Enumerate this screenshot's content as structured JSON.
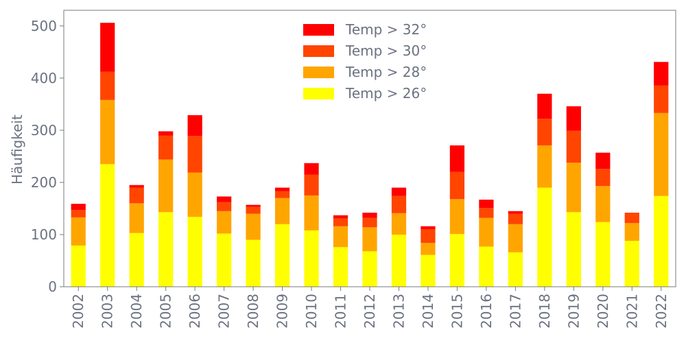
{
  "chart_data": {
    "type": "bar",
    "stacked": true,
    "categories": [
      "2002",
      "2003",
      "2004",
      "2005",
      "2006",
      "2007",
      "2008",
      "2009",
      "2010",
      "2011",
      "2012",
      "2013",
      "2014",
      "2015",
      "2016",
      "2017",
      "2018",
      "2019",
      "2020",
      "2021",
      "2022"
    ],
    "ylabel": "Häufigkeit",
    "xlabel": "",
    "ylim": [
      0,
      530
    ],
    "yticks": [
      0,
      100,
      200,
      300,
      400,
      500
    ],
    "legend_position": "top-center",
    "grid": false,
    "series": [
      {
        "name": "Temp > 26°",
        "color": "#ffff00",
        "values": [
          79,
          235,
          103,
          143,
          134,
          102,
          90,
          120,
          108,
          76,
          68,
          100,
          61,
          101,
          77,
          66,
          190,
          143,
          124,
          88,
          174
        ]
      },
      {
        "name": "Temp > 28°",
        "color": "#ffa500",
        "values": [
          54,
          123,
          57,
          101,
          85,
          43,
          50,
          50,
          67,
          40,
          46,
          41,
          23,
          67,
          55,
          54,
          81,
          95,
          69,
          34,
          159
        ]
      },
      {
        "name": "Temp > 30°",
        "color": "#ff4500",
        "values": [
          14,
          54,
          30,
          46,
          70,
          17,
          13,
          13,
          40,
          15,
          18,
          33,
          26,
          52,
          19,
          20,
          51,
          61,
          33,
          20,
          53
        ]
      },
      {
        "name": "Temp > 32°",
        "color": "#ff0000",
        "values": [
          12,
          94,
          5,
          8,
          40,
          11,
          4,
          7,
          22,
          6,
          10,
          16,
          6,
          51,
          16,
          5,
          48,
          47,
          31,
          0,
          45
        ]
      }
    ]
  }
}
